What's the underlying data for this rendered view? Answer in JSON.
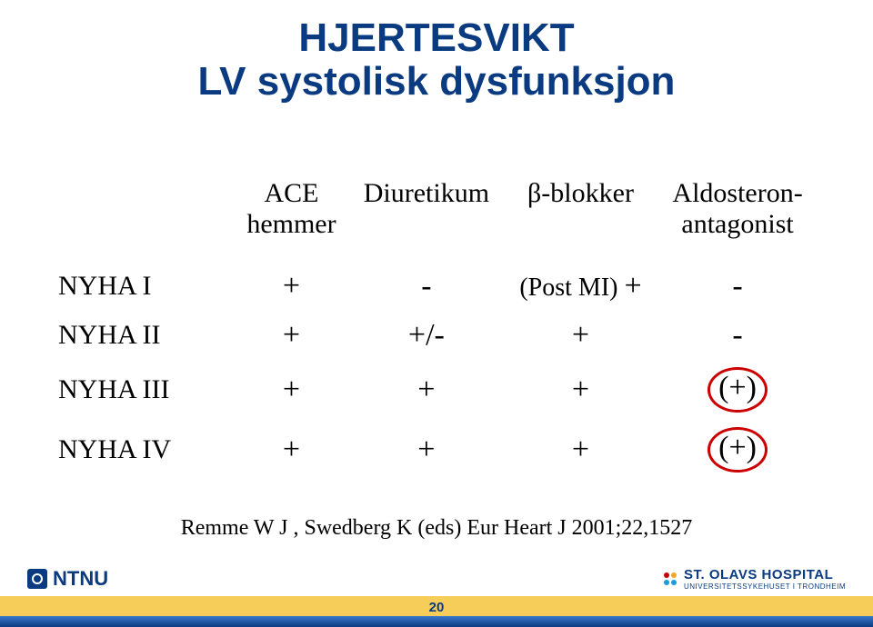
{
  "title": {
    "line1": "HJERTESVIKT",
    "line2": "LV systolisk dysfunksjon",
    "color": "#0a3a80",
    "fontsize": 44
  },
  "table": {
    "columns": [
      "",
      "ACE hemmer",
      "Diuretikum",
      "β-blokker",
      "Aldosteron-antagonist"
    ],
    "rows": [
      {
        "label": "NYHA I",
        "cells": [
          "+",
          "-",
          "(Post MI) +",
          "-"
        ]
      },
      {
        "label": "NYHA II",
        "cells": [
          "+",
          "+/-",
          "+",
          "-"
        ]
      },
      {
        "label": "NYHA III",
        "cells": [
          "+",
          "+",
          "+",
          "(+)"
        ]
      },
      {
        "label": "NYHA IV",
        "cells": [
          "+",
          "+",
          "+",
          "(+)"
        ]
      }
    ],
    "circled_cells": [
      [
        2,
        3
      ],
      [
        3,
        3
      ]
    ],
    "circle_color": "#cc0000",
    "header_fontsize": 30,
    "cell_fontsize": 34
  },
  "citation": "Remme W J , Swedberg K (eds) Eur Heart J 2001;22,1527",
  "footer": {
    "page_number": "20",
    "ntnu_label": "NTNU",
    "stolav_title": "ST. OLAVS HOSPITAL",
    "stolav_sub": "UNIVERSITETSSYKEHUSET I TRONDHEIM",
    "bar_gold": "#f6c94b",
    "bar_blue": "#0a3a80",
    "dot_colors": [
      "#cc0000",
      "#1a9edb",
      "#f6a623",
      "#1a9edb"
    ]
  }
}
